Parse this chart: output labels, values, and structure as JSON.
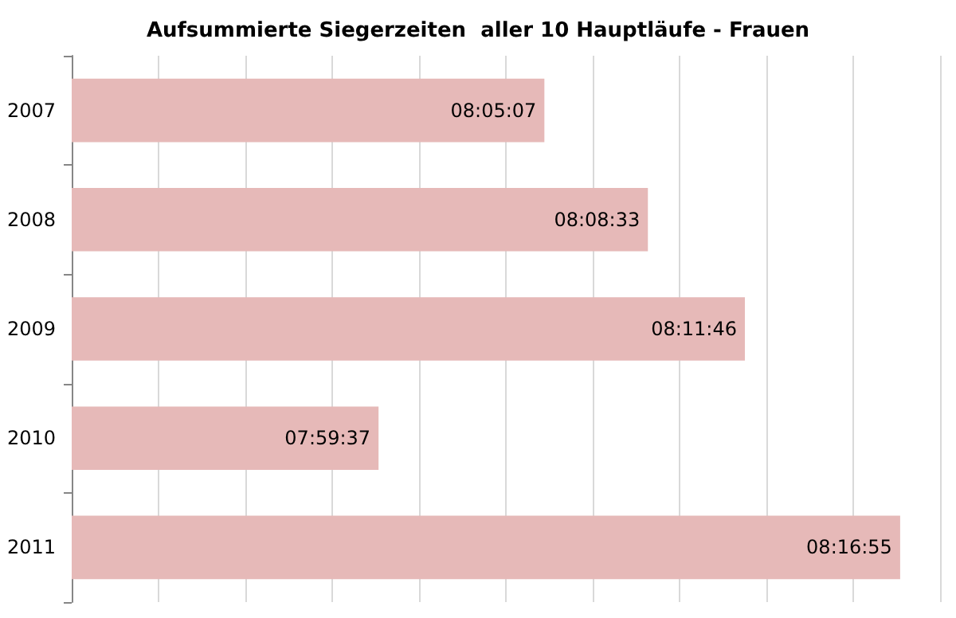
{
  "chart_data": {
    "type": "bar",
    "orientation": "horizontal",
    "title": "Aufsummierte Siegerzeiten  aller 10 Hauptläufe - Frauen",
    "categories": [
      "2007",
      "2008",
      "2009",
      "2010",
      "2011"
    ],
    "values": [
      8.08528,
      8.1425,
      8.19611,
      7.99361,
      8.28194
    ],
    "value_labels": [
      "08:05:07",
      "08:08:33",
      "08:11:46",
      "07:59:37",
      "08:16:55"
    ],
    "color": "#e6b9b8",
    "xlim": [
      7.824,
      8.304
    ],
    "xticks": [
      {
        "value": 7.824,
        "label": null
      },
      {
        "value": 7.872,
        "label": null
      },
      {
        "value": 7.92,
        "label": null
      },
      {
        "value": 7.968,
        "label": null
      },
      {
        "value": 8.016,
        "label": null
      },
      {
        "value": 8.064,
        "label": null
      },
      {
        "value": 8.112,
        "label": null
      },
      {
        "value": 8.16,
        "label": null
      },
      {
        "value": 8.208,
        "label": null
      },
      {
        "value": 8.256,
        "label": null
      },
      {
        "value": 8.304,
        "label": null
      }
    ],
    "tick_labels": "y",
    "grid": "x"
  }
}
